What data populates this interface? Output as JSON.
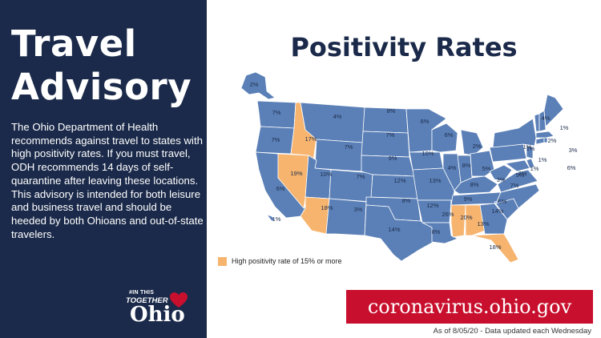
{
  "colors": {
    "navy": "#1b2a4a",
    "state_blue": "#5b80b7",
    "high_orange": "#f6b46f",
    "banner_red": "#c8102e"
  },
  "left_panel": {
    "title_line1": "Travel",
    "title_line2": "Advisory",
    "description": "The Ohio Department of Health recommends against travel to states with high positivity rates. If you must travel, ODH recommends 14 days of self-quarantine after leaving these locations. This advisory is intended for both leisure and business travel and should be heeded by both Ohioans and out-of-state travelers.",
    "logo": {
      "hashtag": "#IN THIS",
      "together": "TOGETHER",
      "ohio": "Ohio"
    }
  },
  "main": {
    "title": "Positivity Rates",
    "legend_label": "High positivity rate of 15% or more",
    "website": "coronavirus.ohio.gov",
    "as_of": "As of 8/05/20 - Data updated each Wednesday"
  },
  "map": {
    "alaska": "2%",
    "hawaii": "1%",
    "washington": "7%",
    "oregon": "7%",
    "california": "6%",
    "nevada": "19%",
    "idaho": "17%",
    "montana": "4%",
    "wyoming": "7%",
    "utah": "10%",
    "arizona": "18%",
    "colorado": "7%",
    "new_mexico": "3%",
    "north_dakota": "8%",
    "south_dakota": "7%",
    "nebraska": "9%",
    "kansas": "12%",
    "oklahoma": "8%",
    "texas": "14%",
    "minnesota": "6%",
    "iowa": "10%",
    "missouri": "13%",
    "arkansas": "12%",
    "louisiana": "8%",
    "wisconsin": "6%",
    "illinois": "4%",
    "indiana": "8%",
    "michigan": "2%",
    "ohio": "5%",
    "kentucky": "8%",
    "tennessee": "9%",
    "mississippi": "26%",
    "alabama": "20%",
    "georgia": "13%",
    "florida": "18%",
    "south_carolina": "14%",
    "north_carolina": "6%",
    "virginia": "7%",
    "west_virginia": "3%",
    "pennsylvania": "1%",
    "new_york": "1%",
    "maine": "4%",
    "vermont": "1%",
    "new_hampshire": "2%",
    "massachusetts": "3%",
    "new_jersey": "1%",
    "maryland": "5%",
    "delaware": "2%",
    "rhode_island": "6%",
    "connecticut": "1%"
  }
}
